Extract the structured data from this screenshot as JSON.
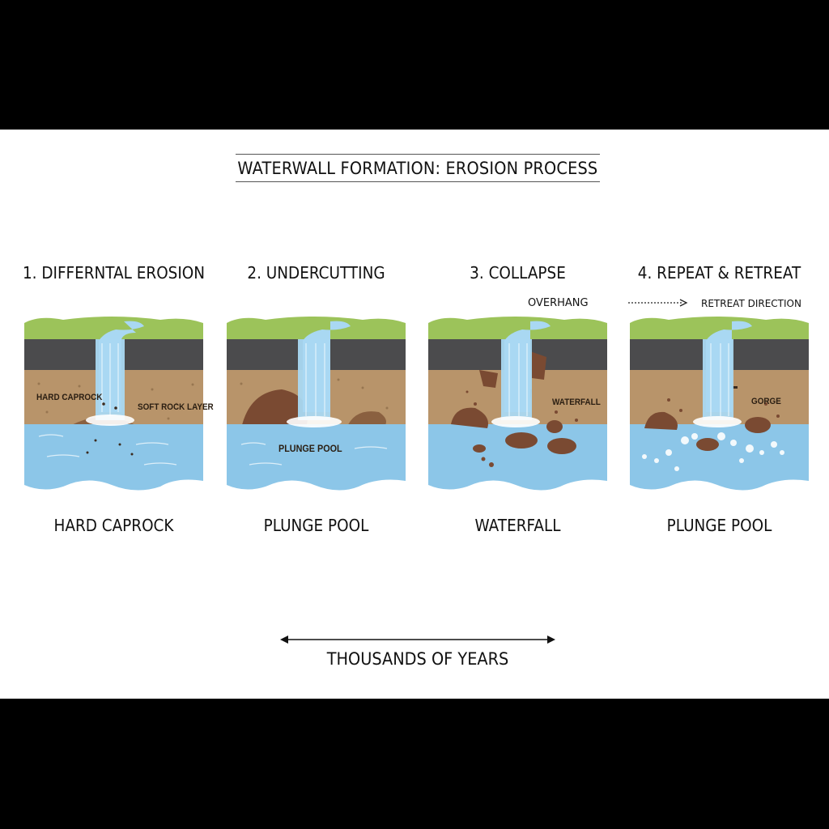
{
  "title": "WATERWALL FORMATION: EROSION PROCESS",
  "colors": {
    "grass": "#9cc35a",
    "caprock": "#4b4b4d",
    "soft_rock": "#b8946a",
    "water": "#8cc6e8",
    "falls": "#a9d8f2",
    "boulder": "#7a4a32"
  },
  "steps": [
    {
      "title": "1. DIFFERNTAL EROSION",
      "caption": "HARD CAPROCK",
      "labels": {
        "caprock": "HARD CAPROCK",
        "soft": "SOFT ROCK LAYER"
      }
    },
    {
      "title": "2. UNDERCUTTING",
      "caption": "PLUNGE POOL",
      "labels": {
        "pool": "PLUNGE POOL"
      }
    },
    {
      "title": "3. COLLAPSE",
      "caption": "WATERFALL",
      "labels": {
        "overhang": "OVERHANG",
        "waterfall": "WATERFALL"
      }
    },
    {
      "title": "4. REPEAT & RETREAT",
      "caption": "PLUNGE POOL",
      "labels": {
        "retreat": "RETREAT DIRECTION",
        "gorge": "GORGE"
      }
    }
  ],
  "timeline": {
    "label": "THOUSANDS OF YEARS"
  }
}
